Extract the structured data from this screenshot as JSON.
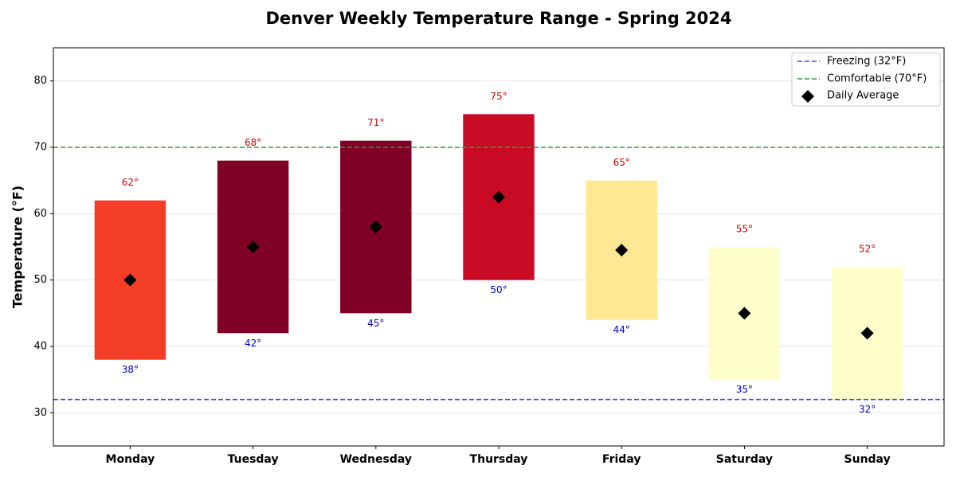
{
  "chart_data": {
    "type": "range-bar",
    "title": "Denver Weekly Temperature Range - Spring 2024",
    "ylabel": "Temperature (°F)",
    "categories": [
      "Monday",
      "Tuesday",
      "Wednesday",
      "Thursday",
      "Friday",
      "Saturday",
      "Sunday"
    ],
    "lows": [
      38,
      42,
      45,
      50,
      44,
      35,
      32
    ],
    "low_labels": [
      "38°",
      "42°",
      "45°",
      "50°",
      "44°",
      "35°",
      "32°"
    ],
    "highs": [
      62,
      68,
      71,
      75,
      65,
      55,
      52
    ],
    "high_labels": [
      "62°",
      "68°",
      "71°",
      "75°",
      "65°",
      "55°",
      "52°"
    ],
    "bar_colors": [
      "#f43d26",
      "#800026",
      "#800026",
      "#c90a24",
      "#ffe893",
      "#ffffcc",
      "#ffffcc"
    ],
    "low_label_color": "#0000cc",
    "high_label_color": "#cc0000",
    "averages": {
      "name": "Daily Average",
      "color": "#000000",
      "values": [
        50,
        55,
        58,
        62.5,
        54.5,
        45,
        42
      ]
    },
    "reference_lines": [
      {
        "name": "Freezing (32°F)",
        "value": 32,
        "color": "#4444dd"
      },
      {
        "name": "Comfortable (70°F)",
        "value": 70,
        "color": "#3a9a3a"
      }
    ],
    "ylim": [
      25,
      85
    ],
    "yticks": [
      30,
      40,
      50,
      60,
      70,
      80
    ],
    "grid": true,
    "legend": "upper right"
  }
}
